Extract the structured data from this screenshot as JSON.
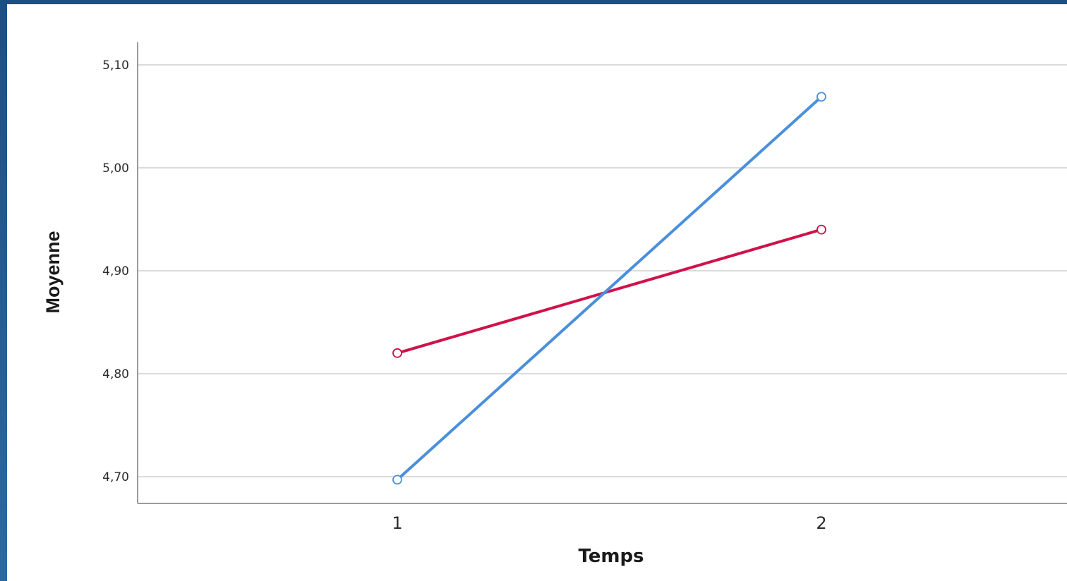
{
  "chart_data": {
    "type": "line",
    "title": "",
    "xlabel": "Temps",
    "ylabel": "Moyenne",
    "categories": [
      "1",
      "2"
    ],
    "ylim": [
      4.675,
      5.12
    ],
    "yticks": [
      "4,70",
      "4,80",
      "4,90",
      "5,00",
      "5,10"
    ],
    "ytick_values": [
      4.7,
      4.8,
      4.9,
      5.0,
      5.1
    ],
    "grid": true,
    "legend": "none",
    "series": [
      {
        "values": [
          4.82,
          4.94
        ],
        "color": "#d0124a"
      },
      {
        "values": [
          4.697,
          5.069
        ],
        "color": "#4a8fdc"
      }
    ]
  }
}
